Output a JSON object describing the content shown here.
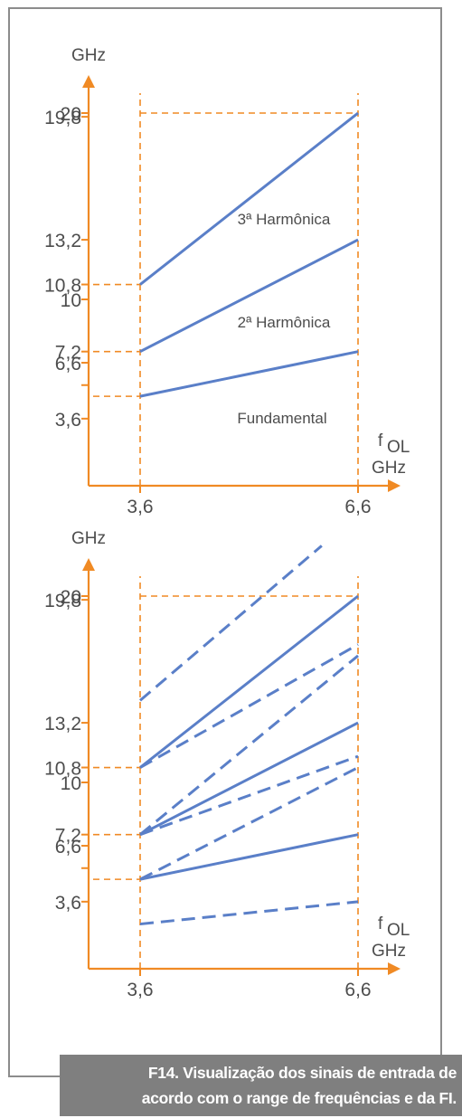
{
  "chart_data": [
    {
      "type": "line",
      "title": "",
      "ylabel": "GHz",
      "xlabel": [
        "f",
        "OL",
        "GHz"
      ],
      "x_ticks": [
        {
          "label": "3,6",
          "value": 3.6
        },
        {
          "label": "6,6",
          "value": 6.6
        }
      ],
      "y_ticks": [
        {
          "label": "20",
          "value": 20
        },
        {
          "label": "19,8",
          "value": 19.8
        },
        {
          "label": "13,2",
          "value": 13.2
        },
        {
          "label": "10,8",
          "value": 10.8
        },
        {
          "label": "10",
          "value": 10
        },
        {
          "label": "7,2",
          "value": 7.2
        },
        {
          "label": "6,6",
          "value": 6.6
        },
        {
          "label": "",
          "value": 5.4
        },
        {
          "label": "3,6",
          "value": 3.6
        }
      ],
      "series": [
        {
          "name": "3ª Harmônica",
          "x": [
            3.6,
            6.6
          ],
          "y": [
            10.8,
            20
          ],
          "style": "solid"
        },
        {
          "name": "2ª Harmônica",
          "x": [
            3.6,
            6.6
          ],
          "y": [
            7.2,
            13.2
          ],
          "style": "solid"
        },
        {
          "name": "Fundamental",
          "x": [
            3.6,
            6.6
          ],
          "y": [
            4.8,
            7.2
          ],
          "style": "solid"
        }
      ],
      "guides": [
        {
          "from": [
            3.6,
            20
          ],
          "to": [
            6.6,
            20
          ]
        },
        {
          "from": [
            2.6,
            10.8
          ],
          "to": [
            3.6,
            10.8
          ]
        },
        {
          "from": [
            2.6,
            7.2
          ],
          "to": [
            3.6,
            7.2
          ]
        },
        {
          "from": [
            2.6,
            4.8
          ],
          "to": [
            3.6,
            4.8
          ]
        }
      ],
      "colors": {
        "axis": "#f08a24",
        "line": "#5a7fc8",
        "text": "#4d4d4d"
      }
    },
    {
      "type": "line",
      "title": "",
      "ylabel": "GHz",
      "xlabel": [
        "f",
        "OL",
        "GHz"
      ],
      "x_ticks": [
        {
          "label": "3,6",
          "value": 3.6
        },
        {
          "label": "6,6",
          "value": 6.6
        }
      ],
      "y_ticks": [
        {
          "label": "20",
          "value": 20
        },
        {
          "label": "19,8",
          "value": 19.8
        },
        {
          "label": "13,2",
          "value": 13.2
        },
        {
          "label": "10,8",
          "value": 10.8
        },
        {
          "label": "10",
          "value": 10
        },
        {
          "label": "7,2",
          "value": 7.2
        },
        {
          "label": "6,6",
          "value": 6.6
        },
        {
          "label": "",
          "value": 5.4
        },
        {
          "label": "3,6",
          "value": 3.6
        }
      ],
      "series": [
        {
          "x": [
            3.6,
            6.6
          ],
          "y": [
            10.8,
            20
          ],
          "style": "solid"
        },
        {
          "x": [
            3.6,
            6.6
          ],
          "y": [
            7.2,
            13.2
          ],
          "style": "solid"
        },
        {
          "x": [
            3.6,
            6.6
          ],
          "y": [
            4.8,
            7.2
          ],
          "style": "solid"
        },
        {
          "x": [
            3.6,
            6.1
          ],
          "y": [
            14.4,
            22.7
          ],
          "style": "dashed"
        },
        {
          "x": [
            3.6,
            6.6
          ],
          "y": [
            10.8,
            17.4
          ],
          "style": "dashed"
        },
        {
          "x": [
            3.6,
            6.6
          ],
          "y": [
            7.2,
            16.8
          ],
          "style": "dashed"
        },
        {
          "x": [
            3.6,
            6.6
          ],
          "y": [
            7.2,
            11.4
          ],
          "style": "dashed"
        },
        {
          "x": [
            3.6,
            6.6
          ],
          "y": [
            4.8,
            10.8
          ],
          "style": "dashed"
        },
        {
          "x": [
            3.6,
            6.6
          ],
          "y": [
            2.4,
            3.6
          ],
          "style": "dashed"
        }
      ],
      "guides": [
        {
          "from": [
            3.6,
            20
          ],
          "to": [
            6.6,
            20
          ]
        },
        {
          "from": [
            2.6,
            10.8
          ],
          "to": [
            3.6,
            10.8
          ]
        },
        {
          "from": [
            2.6,
            7.2
          ],
          "to": [
            3.6,
            7.2
          ]
        },
        {
          "from": [
            2.6,
            4.8
          ],
          "to": [
            3.6,
            4.8
          ]
        }
      ],
      "colors": {
        "axis": "#f08a24",
        "line": "#5a7fc8",
        "text": "#4d4d4d"
      }
    }
  ],
  "caption": {
    "line1": "F14. Visualização dos sinais de entrada de",
    "line2": "acordo com o range de frequências e da FI."
  }
}
